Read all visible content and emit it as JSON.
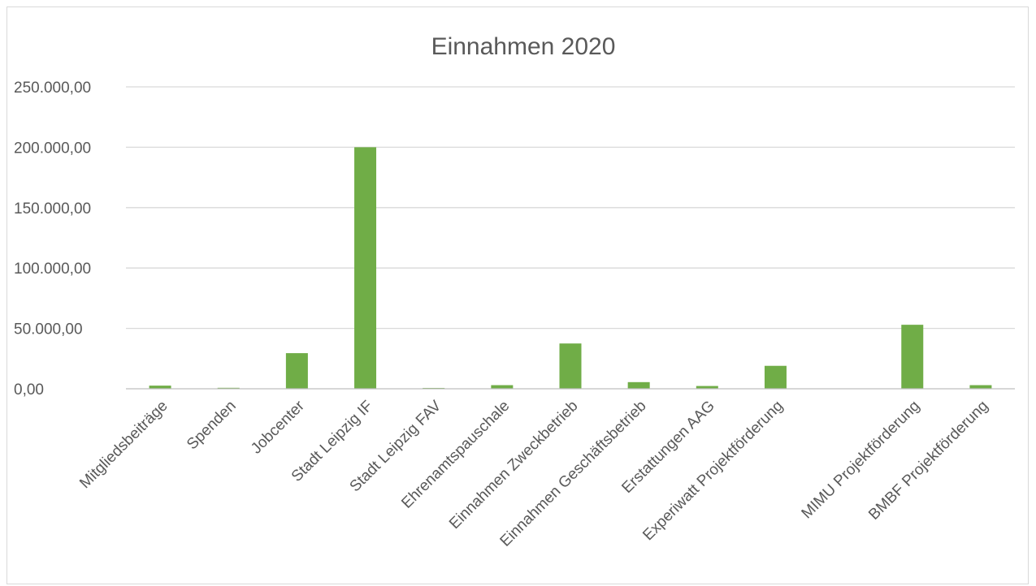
{
  "chart_data": {
    "type": "bar",
    "title": "Einnahmen 2020",
    "xlabel": "",
    "ylabel": "",
    "ylim": [
      0,
      250000
    ],
    "y_ticks": [
      {
        "value": 0,
        "label": "0,00"
      },
      {
        "value": 50000,
        "label": "50.000,00"
      },
      {
        "value": 100000,
        "label": "100.000,00"
      },
      {
        "value": 150000,
        "label": "150.000,00"
      },
      {
        "value": 200000,
        "label": "200.000,00"
      },
      {
        "value": 250000,
        "label": "250.000,00"
      }
    ],
    "grid": true,
    "legend": "none",
    "bar_color": "#70ad47",
    "categories": [
      "Mitgliedsbeiträge",
      "Spenden",
      "Jobcenter",
      "Stadt Leipzig IF",
      "Stadt Leipzig FAV",
      "Ehrenamtspauschale",
      "Einnahmen Zweckbetrieb",
      "Einnahmen Geschäftsbetrieb",
      "Erstattungen AAG",
      "Experiwatt Projektförderung",
      "",
      "MIMU Projektförderung",
      "BMBF Projektförderung"
    ],
    "values": [
      2600,
      800,
      29500,
      200000,
      700,
      3000,
      37500,
      5500,
      2300,
      19000,
      0,
      53000,
      3000
    ]
  }
}
